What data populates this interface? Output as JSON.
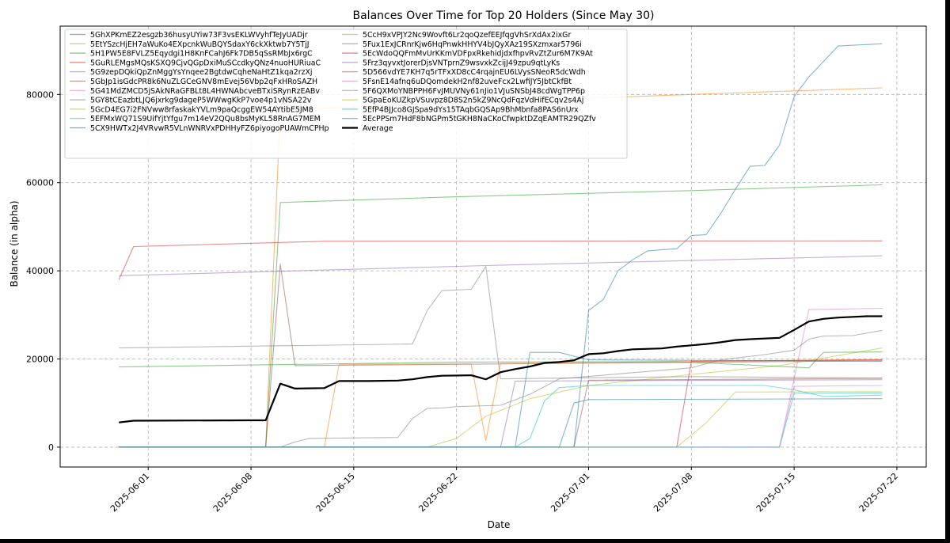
{
  "chart_data": {
    "type": "line",
    "title": "Balances Over Time for Top 20 Holders (Since May 30)",
    "xlabel": "Date",
    "ylabel": "Balance (in alpha)",
    "x_ticks": [
      "2025-06-01",
      "2025-06-08",
      "2025-06-15",
      "2025-06-22",
      "2025-07-01",
      "2025-07-08",
      "2025-07-15",
      "2025-07-22"
    ],
    "y_ticks": [
      0,
      20000,
      40000,
      60000,
      80000
    ],
    "y_tick_labels": [
      "0",
      "20000",
      "40000",
      "60000",
      "80000"
    ],
    "xlim": [
      "2025-05-26",
      "2025-07-24"
    ],
    "ylim": [
      -4500,
      95500
    ],
    "grid": true,
    "legend_position": "upper-left",
    "series": [
      {
        "name": "5GhXPKmEZ2esgzb36husyUYiw73F3vsEKLWVyhfTeJyUADjr",
        "color": "#1f77b4",
        "points": [
          [
            "2025-05-30",
            0
          ],
          [
            "2025-06-30",
            0
          ],
          [
            "2025-07-01",
            31000
          ],
          [
            "2025-07-02",
            33500
          ],
          [
            "2025-07-03",
            40000
          ],
          [
            "2025-07-04",
            42500
          ],
          [
            "2025-07-05",
            44500
          ],
          [
            "2025-07-06",
            44800
          ],
          [
            "2025-07-07",
            45000
          ],
          [
            "2025-07-08",
            48000
          ],
          [
            "2025-07-09",
            48200
          ],
          [
            "2025-07-10",
            53000
          ],
          [
            "2025-07-11",
            58500
          ],
          [
            "2025-07-12",
            63700
          ],
          [
            "2025-07-13",
            63900
          ],
          [
            "2025-07-14",
            68500
          ],
          [
            "2025-07-15",
            79500
          ],
          [
            "2025-07-16",
            84000
          ],
          [
            "2025-07-17",
            87500
          ],
          [
            "2025-07-18",
            91000
          ],
          [
            "2025-07-21",
            91500
          ]
        ]
      },
      {
        "name": "5EtYSzcHjEH7aWuKo4EXpcnkWuBQYSdaxY6ckXktwb7Y5TjJ",
        "color": "#ff7f0e",
        "points": [
          [
            "2025-05-30",
            0
          ],
          [
            "2025-06-09",
            0
          ],
          [
            "2025-06-10",
            76500
          ],
          [
            "2025-07-08",
            80000
          ],
          [
            "2025-07-21",
            81500
          ]
        ]
      },
      {
        "name": "5H1PW5E8FVLZ5Eqydgi1H8KnFCahJ6Fk7DB5qSsRMbJx6rgC",
        "color": "#2ca02c",
        "points": [
          [
            "2025-05-30",
            0
          ],
          [
            "2025-06-09",
            0
          ],
          [
            "2025-06-10",
            55500
          ],
          [
            "2025-06-22",
            56800
          ],
          [
            "2025-07-08",
            58200
          ],
          [
            "2025-07-21",
            59500
          ]
        ]
      },
      {
        "name": "5GuRLEMgsMQsKSXQ9CjvQGpDxiMuSCcdkyQNz4nuoHURiuaC",
        "color": "#d62728",
        "points": [
          [
            "2025-05-30",
            38000
          ],
          [
            "2025-05-31",
            45500
          ],
          [
            "2025-06-13",
            46700
          ],
          [
            "2025-07-21",
            46800
          ]
        ]
      },
      {
        "name": "5G9zepDQkiQpZnMggYsYnqee2BgtdwCqheNaHtZ1kqa2rzXj",
        "color": "#9467bd",
        "points": [
          [
            "2025-05-30",
            38900
          ],
          [
            "2025-06-24",
            41200
          ],
          [
            "2025-07-21",
            43400
          ]
        ]
      },
      {
        "name": "5GbJp1isGdcPR8k6NuZLGCeGNV8mEvej56Vbp2qFxHRoSAZH",
        "color": "#8c564b",
        "points": [
          [
            "2025-05-30",
            0
          ],
          [
            "2025-06-09",
            0
          ],
          [
            "2025-06-10",
            41500
          ],
          [
            "2025-06-11",
            18500
          ],
          [
            "2025-07-21",
            19600
          ]
        ]
      },
      {
        "name": "5G41MdZMCD5jSAkNRaGFBLt8L4HWNAbcveBTxiSRynRzEABv",
        "color": "#e377c2",
        "points": [
          [
            "2025-05-30",
            0
          ],
          [
            "2025-07-14",
            0
          ],
          [
            "2025-07-16",
            31200
          ],
          [
            "2025-07-21",
            31500
          ]
        ]
      },
      {
        "name": "5GY8tCEazbtLJQ6jxrkg9dageP5WWwgKkP7voe4p1vNSA22v",
        "color": "#7f7f7f",
        "points": [
          [
            "2025-05-30",
            22500
          ],
          [
            "2025-06-19",
            23400
          ],
          [
            "2025-06-20",
            31000
          ],
          [
            "2025-06-21",
            35500
          ],
          [
            "2025-06-23",
            35800
          ],
          [
            "2025-06-24",
            41000
          ],
          [
            "2025-06-25",
            15500
          ],
          [
            "2025-07-08",
            16000
          ],
          [
            "2025-07-21",
            15700
          ]
        ]
      },
      {
        "name": "5GcD4EG7i2FNVww8rfaskakYVLm9paQcggEW54AYtibE5JM8",
        "color": "#bcbd22",
        "points": [
          [
            "2025-05-30",
            0
          ],
          [
            "2025-06-20",
            0
          ],
          [
            "2025-06-22",
            2000
          ],
          [
            "2025-06-24",
            7000
          ],
          [
            "2025-06-27",
            11000
          ],
          [
            "2025-07-01",
            14000
          ],
          [
            "2025-07-08",
            16500
          ],
          [
            "2025-07-14",
            18500
          ],
          [
            "2025-07-21",
            22500
          ]
        ]
      },
      {
        "name": "5EFMxWQ71S9UifYjtYfgu7m14eV2QQu8bsMyKL58RnAG7MEM",
        "color": "#17becf",
        "points": [
          [
            "2025-05-30",
            0
          ],
          [
            "2025-06-26",
            0
          ],
          [
            "2025-06-27",
            2000
          ],
          [
            "2025-06-28",
            10500
          ],
          [
            "2025-06-29",
            13500
          ],
          [
            "2025-07-01",
            14000
          ],
          [
            "2025-07-13",
            14000
          ],
          [
            "2025-07-15",
            13000
          ],
          [
            "2025-07-17",
            11500
          ],
          [
            "2025-07-21",
            11800
          ]
        ]
      },
      {
        "name": "5CX9HWTx2J4VRvwR5VLnWNRVxPDHHyFZ6piyogoPUAWmCPHp",
        "color": "#1f77b4",
        "points": [
          [
            "2025-05-30",
            0
          ],
          [
            "2025-06-26",
            0
          ],
          [
            "2025-06-27",
            21500
          ],
          [
            "2025-06-29",
            21500
          ],
          [
            "2025-07-01",
            19800
          ],
          [
            "2025-07-21",
            19500
          ]
        ]
      },
      {
        "name": "5CcH9xVPJY2Nc9Wovft6Lr2qoQzefEEJfqgVhSrXdAx2ixGr",
        "color": "#ff7f0e",
        "points": [
          [
            "2025-05-30",
            0
          ],
          [
            "2025-06-13",
            0
          ],
          [
            "2025-06-14",
            18800
          ],
          [
            "2025-06-23",
            18900
          ],
          [
            "2025-06-24",
            1500
          ],
          [
            "2025-06-25",
            19000
          ],
          [
            "2025-07-21",
            19900
          ]
        ]
      },
      {
        "name": "5Fux1ExJCRnrKjw6HqPnwkHHYV4bJQyXAz19SXzmxar5796i",
        "color": "#2ca02c",
        "points": [
          [
            "2025-05-30",
            18200
          ],
          [
            "2025-06-22",
            19300
          ],
          [
            "2025-07-07",
            19400
          ],
          [
            "2025-07-16",
            18000
          ],
          [
            "2025-07-17",
            21500
          ],
          [
            "2025-07-21",
            21600
          ]
        ]
      },
      {
        "name": "5EcWdoQQFmMvUrKKmVDFpxRkehidjdxfhpvRvZtZur6M7K9At",
        "color": "#d62728",
        "points": [
          [
            "2025-05-30",
            0
          ],
          [
            "2025-07-07",
            0
          ],
          [
            "2025-07-08",
            19500
          ],
          [
            "2025-07-21",
            19800
          ]
        ]
      },
      {
        "name": "5Frz3qyvxtJorerDjsVNTprnZ9wsvxkZcijJ49zpu9qtLyKs",
        "color": "#9467bd",
        "points": [
          [
            "2025-05-30",
            0
          ],
          [
            "2025-06-25",
            0
          ],
          [
            "2025-06-26",
            15000
          ],
          [
            "2025-07-21",
            15300
          ]
        ]
      },
      {
        "name": "5D566vdYE7KH7q5rTFxXD8cC4rqajnEU6LVysSNeoR5dcWdh",
        "color": "#8c564b",
        "points": [
          [
            "2025-05-30",
            0
          ],
          [
            "2025-06-30",
            0
          ],
          [
            "2025-07-01",
            15200
          ],
          [
            "2025-07-21",
            15600
          ]
        ]
      },
      {
        "name": "5FsnE14afnq6uDQomdekH2nf82uveFcx2LwfiJY5JbtCkfBt",
        "color": "#e377c2",
        "points": [
          [
            "2025-05-30",
            0
          ],
          [
            "2025-07-14",
            0
          ],
          [
            "2025-07-15",
            13800
          ],
          [
            "2025-07-21",
            14000
          ]
        ]
      },
      {
        "name": "5F6QXMoYNBPPH6FvJMUVNy61nJio1VJuSNSbJ48cdWgTPP6p",
        "color": "#7f7f7f",
        "points": [
          [
            "2025-05-30",
            0
          ],
          [
            "2025-06-10",
            0
          ],
          [
            "2025-06-11",
            1200
          ],
          [
            "2025-06-12",
            2000
          ],
          [
            "2025-06-18",
            2200
          ],
          [
            "2025-06-19",
            6500
          ],
          [
            "2025-06-20",
            8800
          ],
          [
            "2025-06-21",
            8900
          ],
          [
            "2025-06-22",
            9200
          ],
          [
            "2025-06-25",
            9500
          ],
          [
            "2025-06-27",
            12000
          ],
          [
            "2025-06-29",
            15500
          ],
          [
            "2025-07-08",
            18000
          ],
          [
            "2025-07-10",
            19800
          ],
          [
            "2025-07-13",
            21000
          ],
          [
            "2025-07-15",
            22000
          ],
          [
            "2025-07-16",
            24500
          ],
          [
            "2025-07-17",
            25200
          ],
          [
            "2025-07-19",
            25300
          ],
          [
            "2025-07-21",
            26500
          ]
        ]
      },
      {
        "name": "5GpaEoKUZkpVSuvpz8D8S2n5kZ9NcQdFqzVdHifECqv2s4Aj",
        "color": "#bcbd22",
        "points": [
          [
            "2025-05-30",
            0
          ],
          [
            "2025-07-07",
            0
          ],
          [
            "2025-07-09",
            5500
          ],
          [
            "2025-07-10",
            9000
          ],
          [
            "2025-07-11",
            12500
          ],
          [
            "2025-07-21",
            12600
          ]
        ]
      },
      {
        "name": "5EfP4BJJco8GJSpa9dYs15TAqbGQSAp9BhMbnfa8PAS6nUrx",
        "color": "#17becf",
        "points": [
          [
            "2025-05-30",
            0
          ],
          [
            "2025-07-14",
            0
          ],
          [
            "2025-07-15",
            12200
          ],
          [
            "2025-07-21",
            12300
          ]
        ]
      },
      {
        "name": "5EcPPSm7HdF8bNGPm5tGKH8NaCKoCfwpktDZqEAMTR29QZfv",
        "color": "#1f77b4",
        "points": [
          [
            "2025-05-30",
            0
          ],
          [
            "2025-06-29",
            0
          ],
          [
            "2025-06-30",
            10000
          ],
          [
            "2025-07-01",
            10800
          ],
          [
            "2025-07-21",
            11000
          ]
        ]
      },
      {
        "name": "Average",
        "color": "#000000",
        "points": [
          [
            "2025-05-30",
            5600
          ],
          [
            "2025-05-31",
            6000
          ],
          [
            "2025-06-08",
            6100
          ],
          [
            "2025-06-09",
            6100
          ],
          [
            "2025-06-10",
            14400
          ],
          [
            "2025-06-11",
            13300
          ],
          [
            "2025-06-13",
            13400
          ],
          [
            "2025-06-14",
            15000
          ],
          [
            "2025-06-16",
            15000
          ],
          [
            "2025-06-18",
            15100
          ],
          [
            "2025-06-19",
            15400
          ],
          [
            "2025-06-20",
            15900
          ],
          [
            "2025-06-21",
            16200
          ],
          [
            "2025-06-23",
            16300
          ],
          [
            "2025-06-24",
            15400
          ],
          [
            "2025-06-25",
            17000
          ],
          [
            "2025-06-26",
            17700
          ],
          [
            "2025-06-27",
            18300
          ],
          [
            "2025-06-28",
            19100
          ],
          [
            "2025-06-29",
            19300
          ],
          [
            "2025-06-30",
            19700
          ],
          [
            "2025-07-01",
            21100
          ],
          [
            "2025-07-02",
            21300
          ],
          [
            "2025-07-03",
            21800
          ],
          [
            "2025-07-04",
            22200
          ],
          [
            "2025-07-06",
            22400
          ],
          [
            "2025-07-07",
            22800
          ],
          [
            "2025-07-08",
            23100
          ],
          [
            "2025-07-09",
            23400
          ],
          [
            "2025-07-10",
            23800
          ],
          [
            "2025-07-11",
            24300
          ],
          [
            "2025-07-12",
            24500
          ],
          [
            "2025-07-14",
            24800
          ],
          [
            "2025-07-15",
            26600
          ],
          [
            "2025-07-16",
            28500
          ],
          [
            "2025-07-17",
            29100
          ],
          [
            "2025-07-18",
            29400
          ],
          [
            "2025-07-20",
            29700
          ],
          [
            "2025-07-21",
            29700
          ]
        ]
      }
    ]
  }
}
